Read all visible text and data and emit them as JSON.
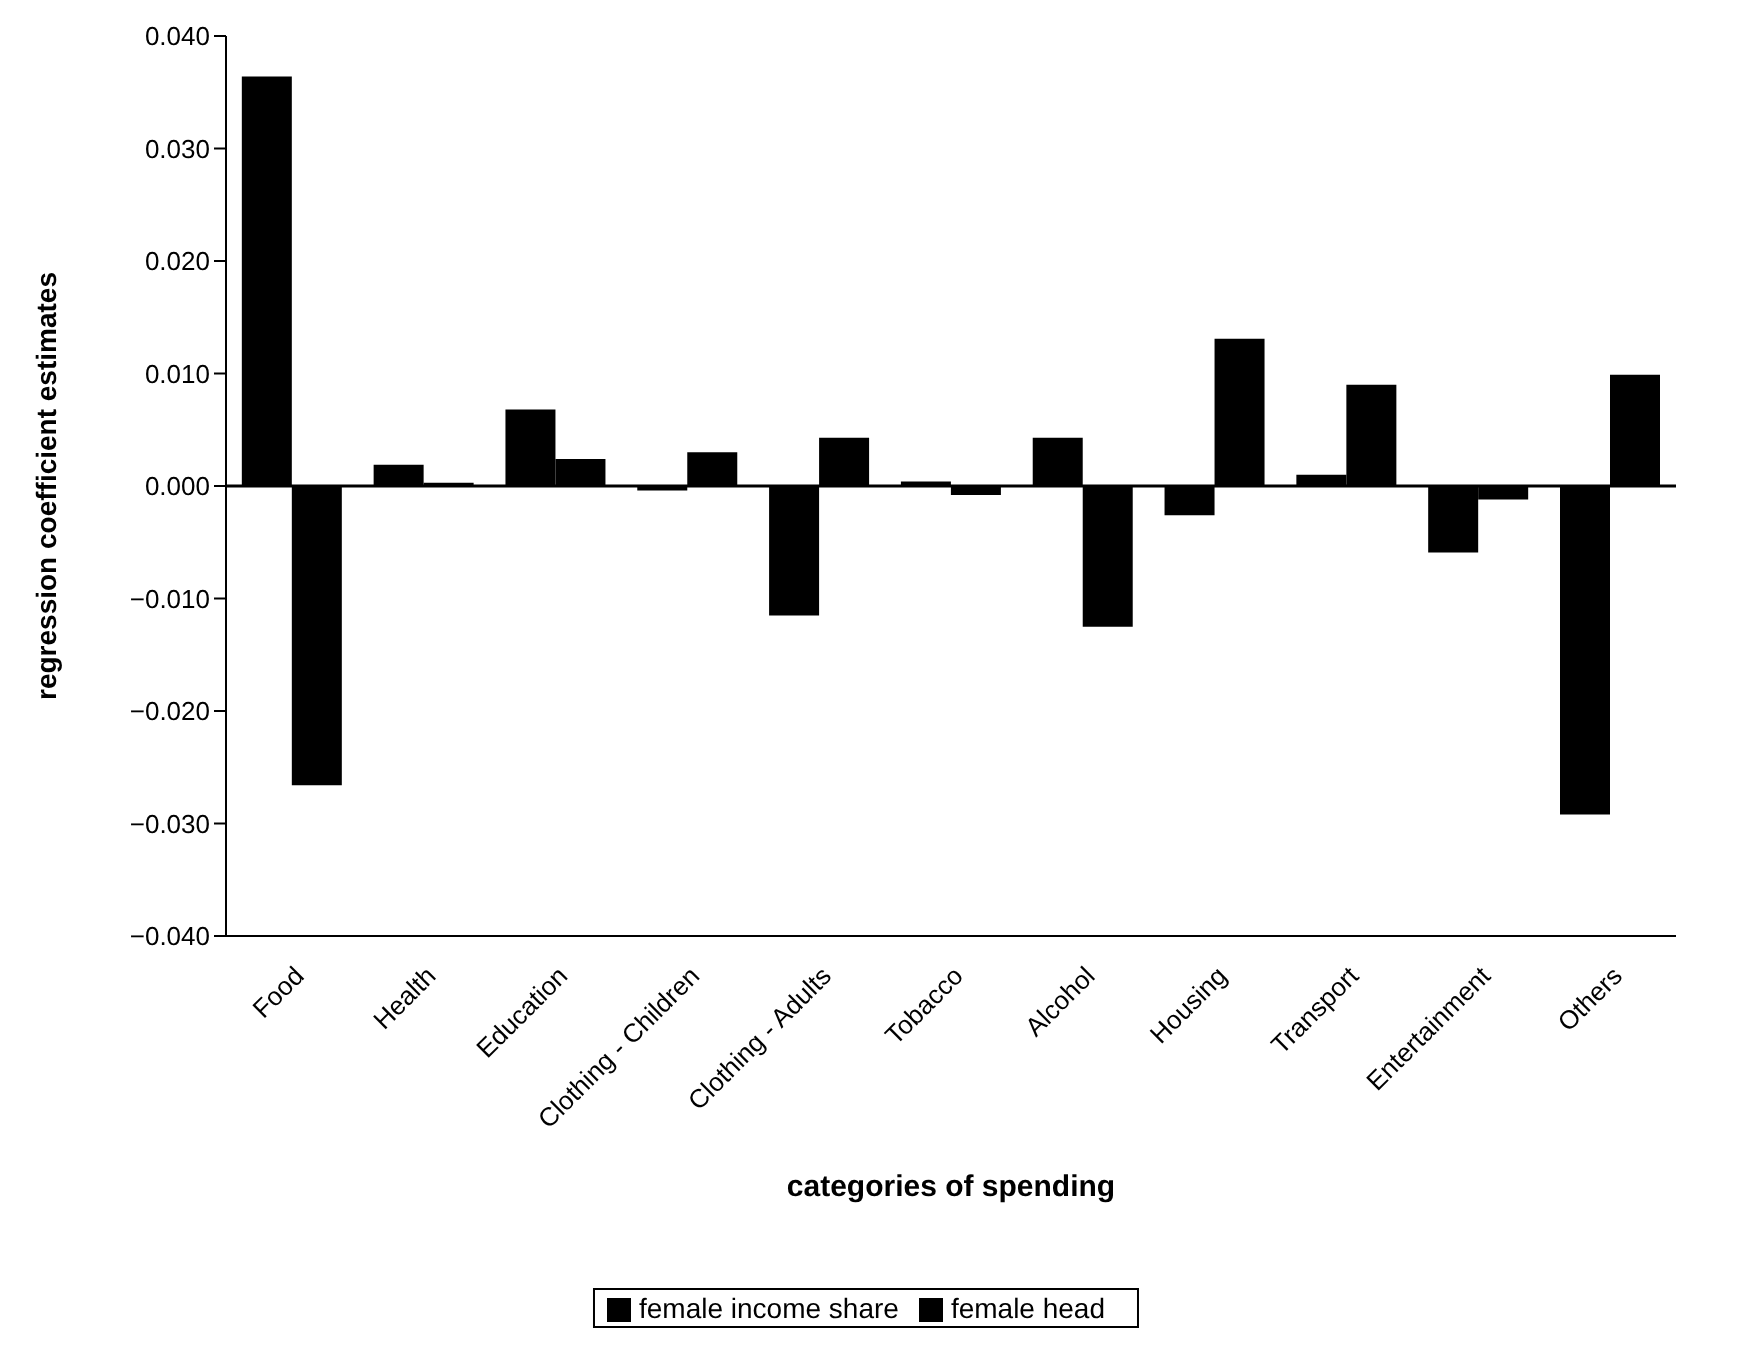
{
  "chart_data": {
    "type": "bar",
    "xlabel": "categories of spending",
    "ylabel": "regression coefficient estimates",
    "categories": [
      "Food",
      "Health",
      "Education",
      "Clothing - Children",
      "Clothing - Adults",
      "Tobacco",
      "Alcohol",
      "Housing",
      "Transport",
      "Entertainment",
      "Others"
    ],
    "series": [
      {
        "name": "female income share",
        "color": "#000000",
        "values": [
          0.0364,
          0.0019,
          0.0068,
          -0.0004,
          -0.0115,
          0.0004,
          0.0043,
          -0.0026,
          0.001,
          -0.0059,
          -0.0292
        ]
      },
      {
        "name": "female head",
        "color": "#000000",
        "values": [
          -0.0266,
          0.0003,
          0.0024,
          0.003,
          0.0043,
          -0.0008,
          -0.0125,
          0.0131,
          0.009,
          -0.0012,
          0.0099
        ]
      }
    ],
    "ylim": [
      -0.04,
      0.04
    ],
    "yticks": [
      {
        "value": -0.04,
        "label": "−0.040"
      },
      {
        "value": -0.03,
        "label": "−0.030"
      },
      {
        "value": -0.02,
        "label": "−0.020"
      },
      {
        "value": -0.01,
        "label": "−0.010"
      },
      {
        "value": 0,
        "label": "0.000"
      },
      {
        "value": 0.01,
        "label": "0.010"
      },
      {
        "value": 0.02,
        "label": "0.020"
      },
      {
        "value": 0.03,
        "label": "0.030"
      },
      {
        "value": 0.04,
        "label": "0.040"
      }
    ],
    "legend": "bottom"
  }
}
